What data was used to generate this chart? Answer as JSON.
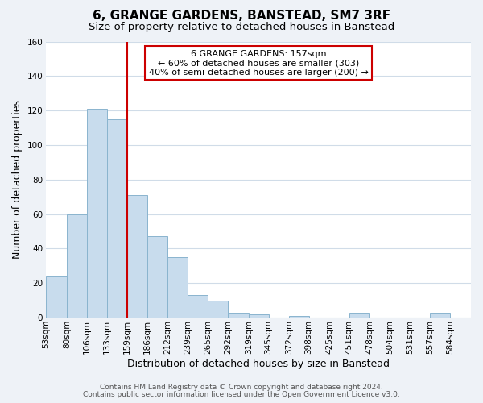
{
  "title": "6, GRANGE GARDENS, BANSTEAD, SM7 3RF",
  "subtitle": "Size of property relative to detached houses in Banstead",
  "xlabel": "Distribution of detached houses by size in Banstead",
  "ylabel": "Number of detached properties",
  "bar_left_edges": [
    53,
    80,
    106,
    133,
    159,
    186,
    212,
    239,
    265,
    292,
    319,
    345,
    372,
    398,
    425,
    451,
    478,
    504,
    531,
    557
  ],
  "bar_heights": [
    24,
    60,
    121,
    115,
    71,
    47,
    35,
    13,
    10,
    3,
    2,
    0,
    1,
    0,
    0,
    3,
    0,
    0,
    0,
    3
  ],
  "bar_widths": [
    27,
    26,
    27,
    26,
    27,
    26,
    27,
    26,
    27,
    27,
    26,
    27,
    26,
    27,
    26,
    27,
    26,
    27,
    26,
    27
  ],
  "bar_color": "#c8dced",
  "bar_edge_color": "#8ab4ce",
  "vline_x": 159,
  "vline_color": "#cc0000",
  "ylim": [
    0,
    160
  ],
  "yticks": [
    0,
    20,
    40,
    60,
    80,
    100,
    120,
    140,
    160
  ],
  "xtick_labels": [
    "53sqm",
    "80sqm",
    "106sqm",
    "133sqm",
    "159sqm",
    "186sqm",
    "212sqm",
    "239sqm",
    "265sqm",
    "292sqm",
    "319sqm",
    "345sqm",
    "372sqm",
    "398sqm",
    "425sqm",
    "451sqm",
    "478sqm",
    "504sqm",
    "531sqm",
    "557sqm",
    "584sqm"
  ],
  "xtick_positions": [
    53,
    80,
    106,
    133,
    159,
    186,
    212,
    239,
    265,
    292,
    319,
    345,
    372,
    398,
    425,
    451,
    478,
    504,
    531,
    557,
    584
  ],
  "annotation_line1": "6 GRANGE GARDENS: 157sqm",
  "annotation_line2": "← 60% of detached houses are smaller (303)",
  "annotation_line3": "40% of semi-detached houses are larger (200) →",
  "annotation_box_color": "#ffffff",
  "annotation_box_edge": "#cc0000",
  "footer1": "Contains HM Land Registry data © Crown copyright and database right 2024.",
  "footer2": "Contains public sector information licensed under the Open Government Licence v3.0.",
  "background_color": "#eef2f7",
  "plot_bg_color": "#ffffff",
  "grid_color": "#d0dce8",
  "title_fontsize": 11,
  "subtitle_fontsize": 9.5,
  "axis_label_fontsize": 9,
  "tick_fontsize": 7.5,
  "annotation_fontsize": 8,
  "footer_fontsize": 6.5
}
